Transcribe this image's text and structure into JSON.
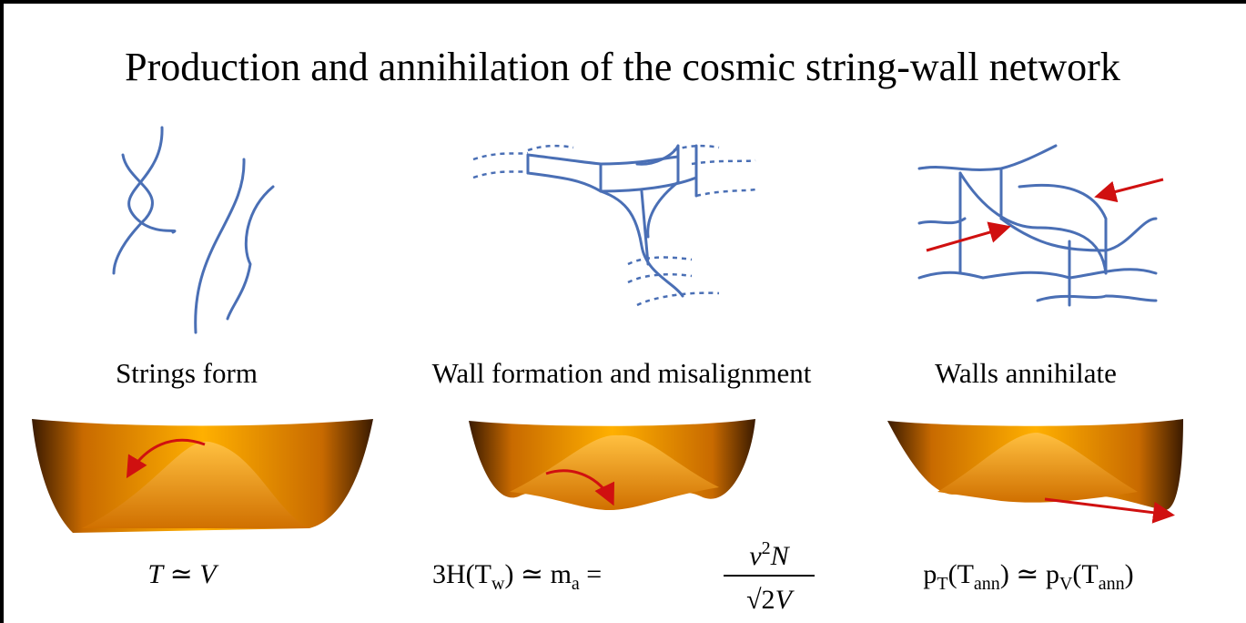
{
  "title": "Production and annihilation of the cosmic string-wall network",
  "stages": [
    {
      "label": "Strings form",
      "formula": [
        "T",
        " ≃ ",
        "V"
      ]
    },
    {
      "label": "Wall formation and misalignment",
      "formula": [
        "3H(T",
        "w",
        ") ≃ m",
        "a",
        " = ",
        "v",
        "2",
        "N",
        "√2",
        "V"
      ]
    },
    {
      "label": "Walls annihilate",
      "formula": [
        "p",
        "T",
        "(T",
        "ann",
        ") ≃ p",
        "V",
        "(T",
        "ann",
        ")"
      ]
    }
  ]
}
